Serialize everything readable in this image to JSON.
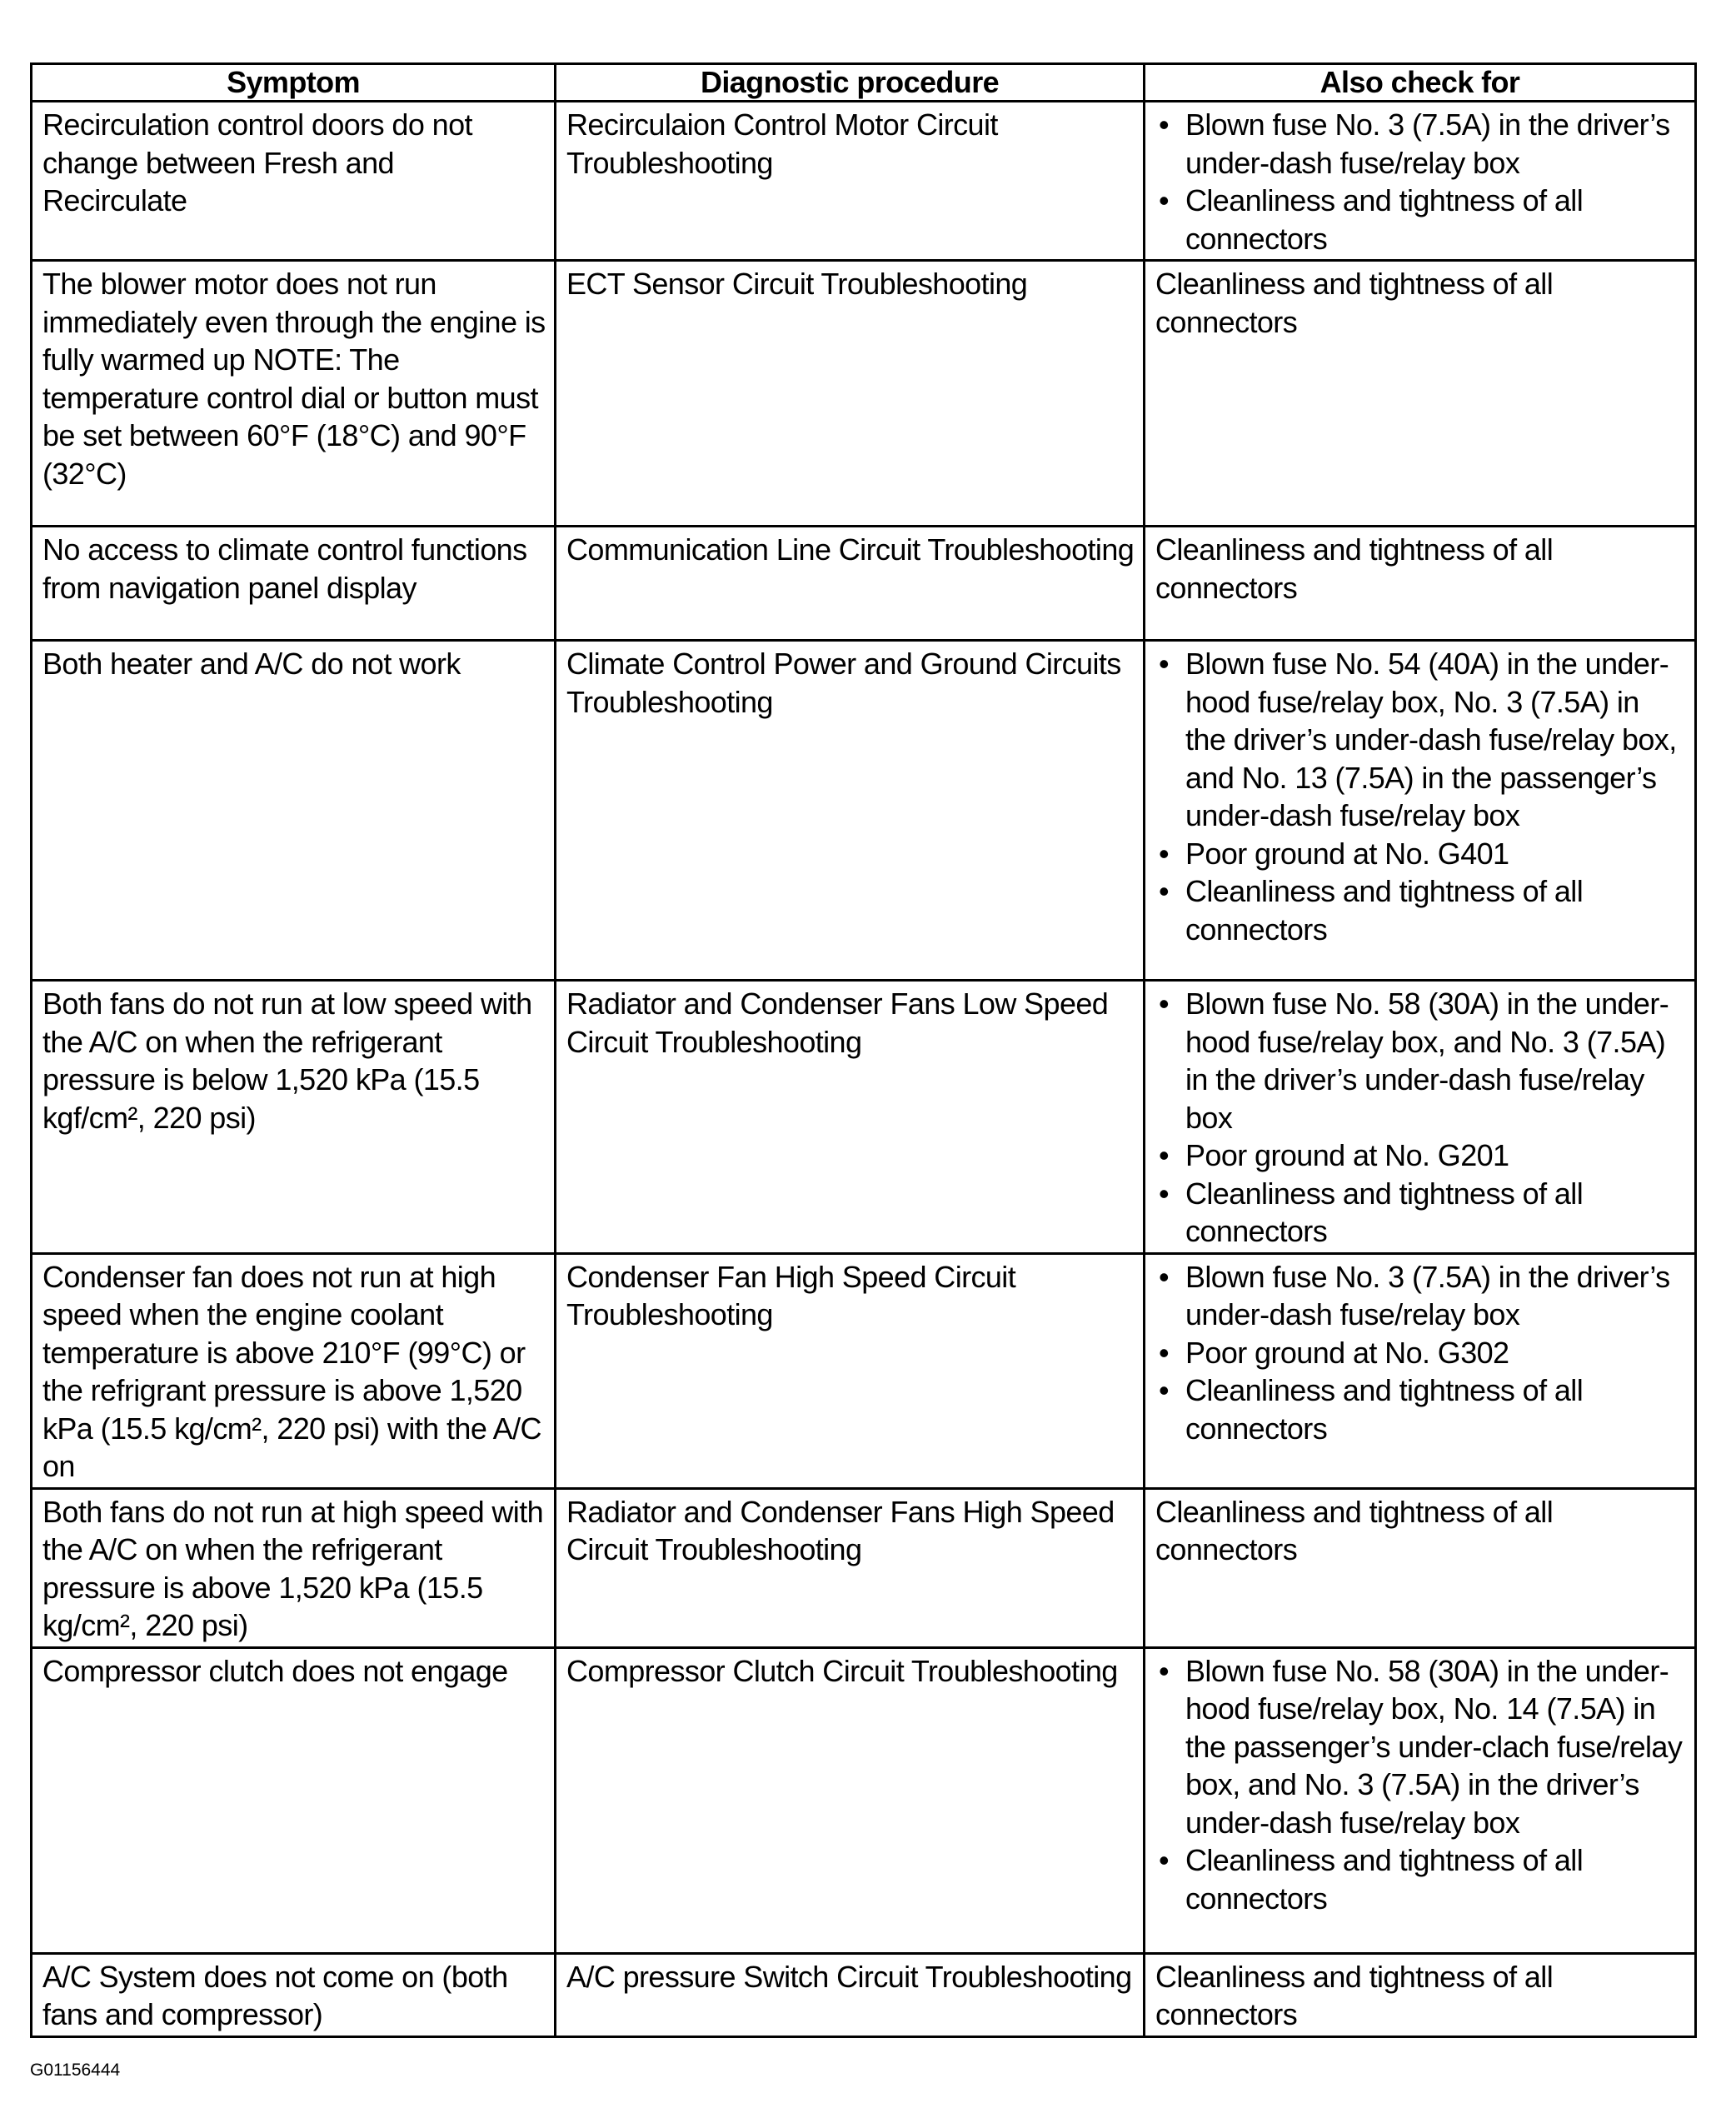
{
  "table": {
    "headers": [
      "Symptom",
      "Diagnostic procedure",
      "Also check for"
    ],
    "rows": [
      {
        "symptom": "Recirculation control doors do not change between Fresh and Recirculate",
        "procedure": "Recirculaion Control Motor Circuit Troubleshooting",
        "check": [
          "Blown fuse No. 3 (7.5A) in the driver’s under-dash fuse/relay box",
          "Cleanliness and tightness of all connectors"
        ],
        "bullets": true
      },
      {
        "symptom": "The blower motor does not run immediately even through the engine is fully warmed up NOTE: The temperature control dial or button must be set between 60°F (18°C) and 90°F (32°C)",
        "procedure": "ECT Sensor Circuit Troubleshooting",
        "check": [
          "Cleanliness and tightness of all connectors"
        ],
        "bullets": false
      },
      {
        "symptom": "No access to climate control functions from navigation panel display",
        "procedure": "Communication Line Circuit Troubleshooting",
        "check": [
          "Cleanliness and tightness of all connectors"
        ],
        "bullets": false
      },
      {
        "symptom": "Both heater and A/C do not work",
        "procedure": "Climate Control Power and Ground Circuits Troubleshooting",
        "check": [
          "Blown fuse No. 54 (40A) in the under-hood fuse/relay box, No. 3 (7.5A) in the driver’s under-dash fuse/relay box, and No. 13 (7.5A) in the passenger’s under-dash fuse/relay box",
          "Poor ground at No. G401",
          "Cleanliness and tightness of all connectors"
        ],
        "bullets": true
      },
      {
        "symptom": "Both fans do not run at low speed with the A/C on when the refrigerant pressure is below 1,520 kPa (15.5 kgf/cm², 220 psi)",
        "procedure": "Radiator and Condenser Fans Low Speed Circuit Troubleshooting",
        "check": [
          "Blown fuse No. 58 (30A) in the under-hood fuse/relay box, and No. 3 (7.5A) in the driver’s under-dash fuse/relay box",
          "Poor ground at No. G201",
          "Cleanliness and tightness of all connectors"
        ],
        "bullets": true
      },
      {
        "symptom": "Condenser fan does not run at high speed when the engine coolant temperature is above 210°F (99°C) or the refrigrant pressure is above 1,520 kPa (15.5 kg/cm², 220 psi) with the A/C on",
        "procedure": "Condenser Fan High Speed Circuit Troubleshooting",
        "check": [
          "Blown fuse No. 3 (7.5A) in the driver’s under-dash fuse/relay box",
          "Poor ground at No. G302",
          "Cleanliness and tightness of all connectors"
        ],
        "bullets": true
      },
      {
        "symptom": "Both fans do not run at high speed with the A/C on when the refrigerant pressure is above 1,520 kPa (15.5 kg/cm², 220 psi)",
        "procedure": "Radiator and Condenser Fans High Speed Circuit Troubleshooting",
        "check": [
          "Cleanliness and tightness of all connectors"
        ],
        "bullets": false
      },
      {
        "symptom": "Compressor clutch does not engage",
        "procedure": "Compressor Clutch Circuit Troubleshooting",
        "check": [
          "Blown fuse No. 58 (30A) in the under-hood fuse/relay box, No. 14 (7.5A) in the passenger’s under-clach fuse/relay box, and No. 3 (7.5A) in the driver’s under-dash fuse/relay box",
          "Cleanliness and tightness of all connectors"
        ],
        "bullets": true
      },
      {
        "symptom": "A/C System does not come on (both fans and compressor)",
        "procedure": "A/C pressure Switch Circuit Troubleshooting",
        "check": [
          "Cleanliness and tightness of all connectors"
        ],
        "bullets": false
      }
    ]
  },
  "caption": "G01156444"
}
